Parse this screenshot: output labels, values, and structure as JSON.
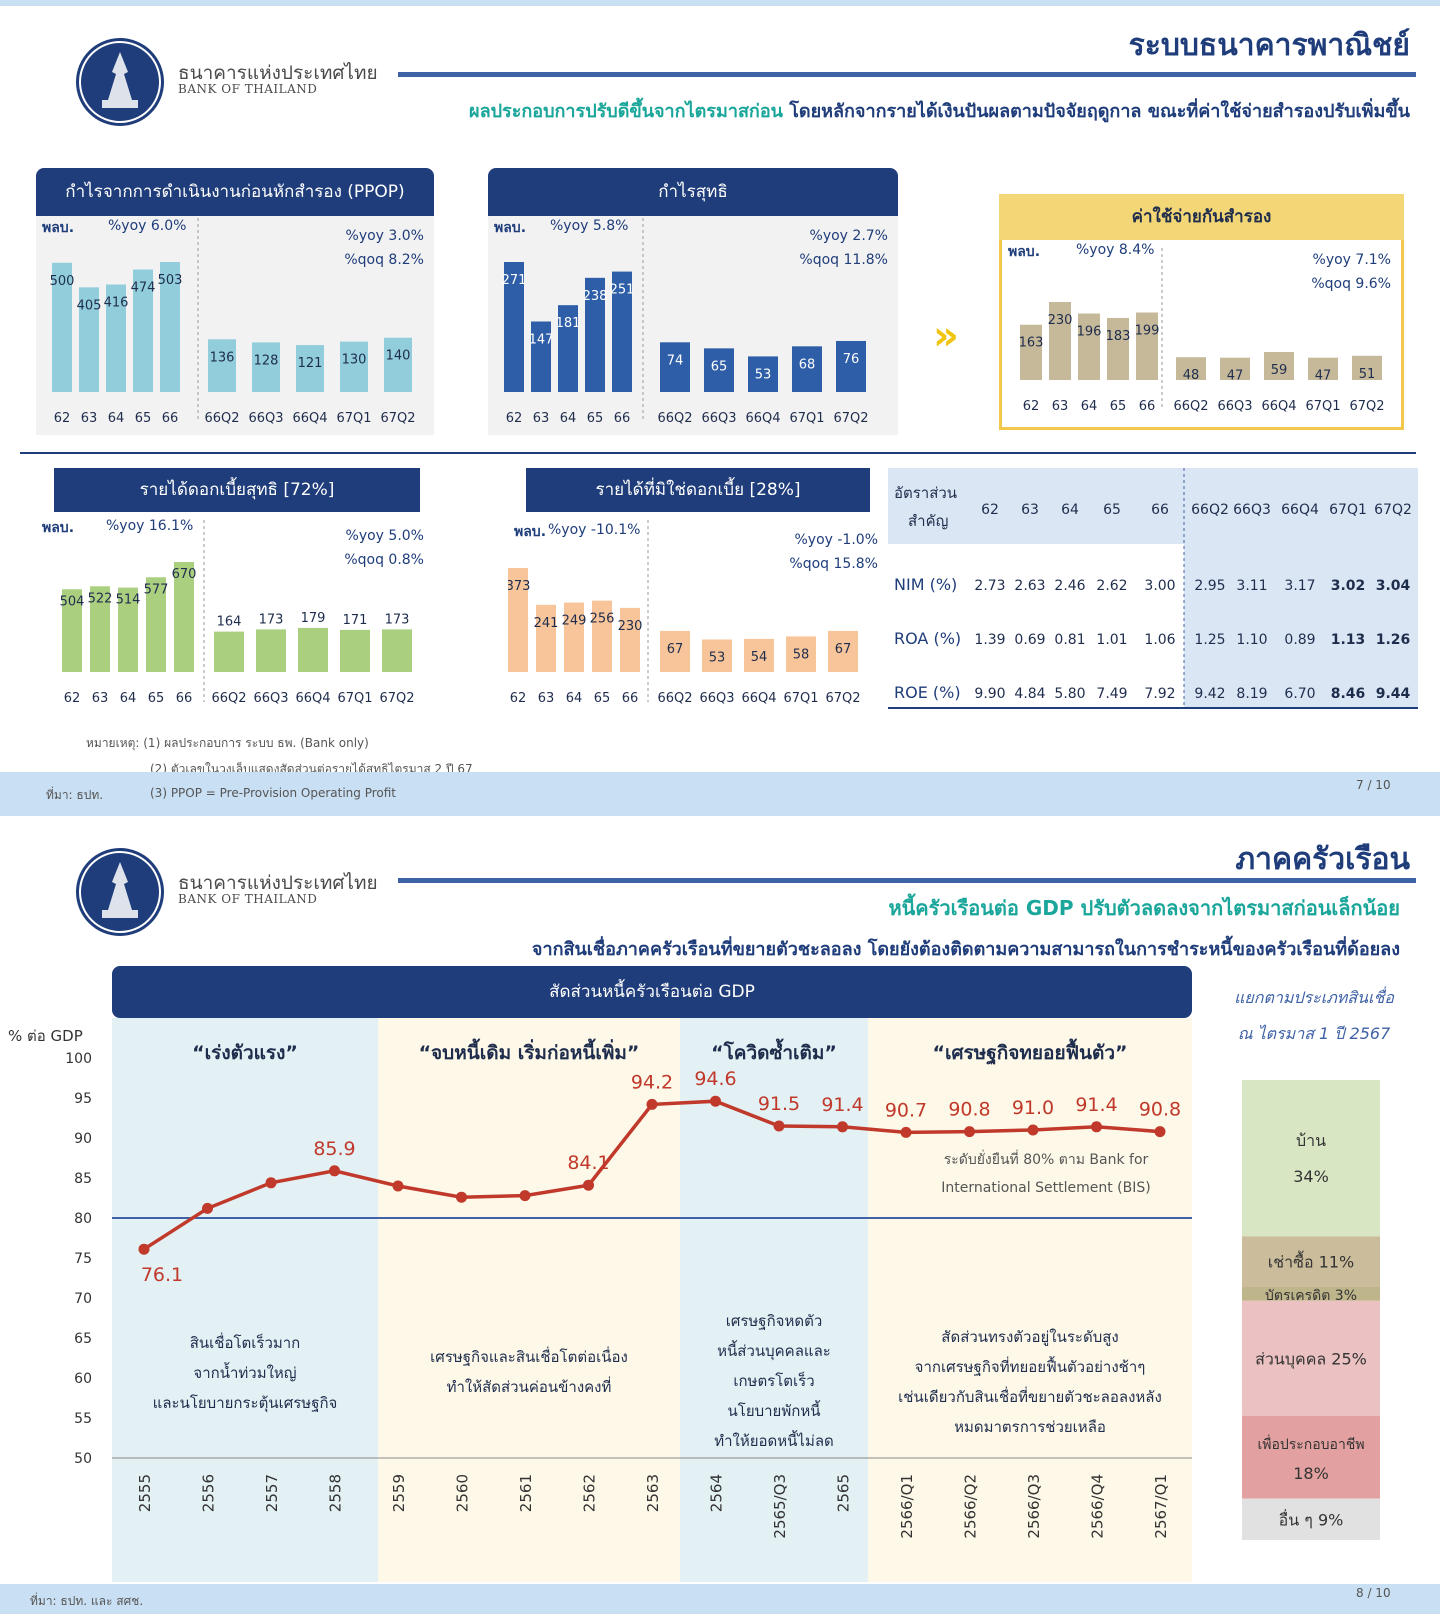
{
  "header": {
    "logo_th": "ธนาคารแห่งประเทศไทย",
    "logo_en": "BANK OF THAILAND"
  },
  "slide1": {
    "title": "ระบบธนาคารพาณิชย์",
    "subtitle_green": "ผลประกอบการปรับดีขึ้นจากไตรมาสก่อน",
    "subtitle_navy": "โดยหลักจากรายได้เงินปันผลตามปัจจัยฤดูกาล ขณะที่ค่าใช้จ่ายสำรองปรับเพิ่มขึ้น",
    "unit": "พลบ.",
    "notes": [
      "หมายเหตุ: (1) ผลประกอบการ ระบบ ธพ. (Bank only)",
      "(2) ตัวเลขในวงเล็บแสดงสัดส่วนต่อรายได้สุทธิไตรมาส 2 ปี 67",
      "(3) PPOP = Pre-Provision Operating Profit"
    ],
    "source": "ที่มา: ธปท.",
    "page": "7 / 10",
    "ratio_table": {
      "header_label_1": "อัตราส่วน",
      "header_label_2": "สำคัญ",
      "columns": [
        "62",
        "63",
        "64",
        "65",
        "66",
        "66Q2",
        "66Q3",
        "66Q4",
        "67Q1",
        "67Q2"
      ],
      "rows": [
        {
          "label": "NIM (%)",
          "values": [
            "2.73",
            "2.63",
            "2.46",
            "2.62",
            "3.00",
            "2.95",
            "3.11",
            "3.17",
            "3.02",
            "3.04"
          ]
        },
        {
          "label": "ROA (%)",
          "values": [
            "1.39",
            "0.69",
            "0.81",
            "1.01",
            "1.06",
            "1.25",
            "1.10",
            "0.89",
            "1.13",
            "1.26"
          ]
        },
        {
          "label": "ROE (%)",
          "values": [
            "9.90",
            "4.84",
            "5.80",
            "7.49",
            "7.92",
            "9.42",
            "8.19",
            "6.70",
            "8.46",
            "9.44"
          ]
        }
      ]
    }
  },
  "slide2": {
    "title": "ภาคครัวเรือน",
    "subtitle_green": "หนี้ครัวเรือนต่อ GDP ปรับตัวลดลงจากไตรมาสก่อนเล็กน้อย",
    "subtitle_navy": "จากสินเชื่อภาคครัวเรือนที่ขยายตัวชะลอลง โดยยังต้องติดตามความสามารถในการชำระหนี้ของครัวเรือนที่ด้อยลง",
    "source": "ที่มา: ธปท. และ สศช.",
    "page": "8 / 10",
    "eras": [
      "“เร่งตัวแรง”",
      "“จบหนี้เดิม เริ่มก่อหนี้เพิ่ม”",
      "“โควิดซ้ำเติม”",
      "“เศรษฐกิจทยอยฟื้นตัว”"
    ],
    "descs": [
      [
        "สินเชื่อโตเร็วมาก",
        "จากน้ำท่วมใหญ่",
        "และนโยบายกระตุ้นเศรษฐกิจ"
      ],
      [
        "เศรษฐกิจและสินเชื่อโตต่อเนื่อง",
        "ทำให้สัดส่วนค่อนข้างคงที่"
      ],
      [
        "เศรษฐกิจหดตัว",
        "หนี้ส่วนบุคคลและ",
        "เกษตรโตเร็ว",
        "นโยบายพักหนี้",
        "ทำให้ยอดหนี้ไม่ลด"
      ],
      [
        "สัดส่วนทรงตัวอยู่ในระดับสูง",
        "จากเศรษฐกิจที่ทยอยฟื้นตัวอย่างช้าๆ",
        "เช่นเดียวกับสินเชื่อที่ขยายตัวชะลอลงหลัง",
        "หมดมาตรการช่วยเหลือ"
      ]
    ],
    "bis_note": [
      "ระดับยั่งยืนที่ 80% ตาม Bank for",
      "International Settlement (BIS)"
    ],
    "stack_title": [
      "แยกตามประเภทสินเชื่อ",
      "ณ ไตรมาส 1 ปี 2567"
    ]
  },
  "chart_data": [
    {
      "type": "bar",
      "title": "กำไรจากการดำเนินงานก่อนหักสำรอง (PPOP)",
      "color": "#92cddc",
      "annual": {
        "categories": [
          "62",
          "63",
          "64",
          "65",
          "66"
        ],
        "values": [
          500,
          405,
          416,
          474,
          503
        ],
        "yoy": "%yoy 6.0%"
      },
      "quarterly": {
        "categories": [
          "66Q2",
          "66Q3",
          "66Q4",
          "67Q1",
          "67Q2"
        ],
        "values": [
          136,
          128,
          121,
          130,
          140
        ],
        "yoy": "%yoy 3.0%",
        "qoq": "%qoq 8.2%"
      }
    },
    {
      "type": "bar",
      "title": "กำไรสุทธิ",
      "color": "#2e5ea8",
      "annual": {
        "categories": [
          "62",
          "63",
          "64",
          "65",
          "66"
        ],
        "values": [
          271,
          147,
          181,
          238,
          251
        ],
        "yoy": "%yoy 5.8%"
      },
      "quarterly": {
        "categories": [
          "66Q2",
          "66Q3",
          "66Q4",
          "67Q1",
          "67Q2"
        ],
        "values": [
          74,
          65,
          53,
          68,
          76
        ],
        "yoy": "%yoy 2.7%",
        "qoq": "%qoq 11.8%"
      }
    },
    {
      "type": "bar",
      "title": "ค่าใช้จ่ายกันสำรอง",
      "color": "#c6b99a",
      "annual": {
        "categories": [
          "62",
          "63",
          "64",
          "65",
          "66"
        ],
        "values": [
          163,
          230,
          196,
          183,
          199
        ],
        "yoy": "%yoy 8.4%"
      },
      "quarterly": {
        "categories": [
          "66Q2",
          "66Q3",
          "66Q4",
          "67Q1",
          "67Q2"
        ],
        "values": [
          48,
          47,
          59,
          47,
          51
        ],
        "yoy": "%yoy 7.1%",
        "qoq": "%qoq 9.6%"
      }
    },
    {
      "type": "bar",
      "title": "รายได้ดอกเบี้ยสุทธิ [72%]",
      "color": "#a9cf7f",
      "annual": {
        "categories": [
          "62",
          "63",
          "64",
          "65",
          "66"
        ],
        "values": [
          504,
          522,
          514,
          577,
          670
        ],
        "yoy": "%yoy 16.1%"
      },
      "quarterly": {
        "categories": [
          "66Q2",
          "66Q3",
          "66Q4",
          "67Q1",
          "67Q2"
        ],
        "values": [
          164,
          173,
          179,
          171,
          173
        ],
        "yoy": "%yoy 5.0%",
        "qoq": "%qoq 0.8%"
      }
    },
    {
      "type": "bar",
      "title": "รายได้ที่มิใช่ดอกเบี้ย [28%]",
      "color": "#f8c59a",
      "annual": {
        "categories": [
          "62",
          "63",
          "64",
          "65",
          "66"
        ],
        "values": [
          373,
          241,
          249,
          256,
          230
        ],
        "yoy": "%yoy -10.1%"
      },
      "quarterly": {
        "categories": [
          "66Q2",
          "66Q3",
          "66Q4",
          "67Q1",
          "67Q2"
        ],
        "values": [
          67,
          53,
          54,
          58,
          67
        ],
        "yoy": "%yoy -1.0%",
        "qoq": "%qoq 15.8%"
      }
    },
    {
      "type": "line",
      "title": "สัดส่วนหนี้ครัวเรือนต่อ GDP",
      "ylabel": "% ต่อ GDP",
      "ylim": [
        50,
        100
      ],
      "yticks": [
        50,
        55,
        60,
        65,
        70,
        75,
        80,
        85,
        90,
        95,
        100
      ],
      "x": [
        "2555",
        "2556",
        "2557",
        "2558",
        "2559",
        "2560",
        "2561",
        "2562",
        "2563",
        "2564",
        "2565/Q3",
        "2565",
        "2566/Q1",
        "2566/Q2",
        "2566/Q3",
        "2566/Q4",
        "2567/Q1"
      ],
      "values": [
        76.1,
        81.2,
        84.4,
        85.9,
        84.0,
        82.6,
        82.8,
        84.1,
        94.2,
        94.6,
        91.5,
        91.4,
        90.7,
        90.8,
        91.0,
        91.4,
        90.8
      ],
      "labels": [
        "76.1",
        "",
        "",
        "85.9",
        "",
        "",
        "",
        "84.1",
        "94.2",
        "94.6",
        "91.5",
        "91.4",
        "90.7",
        "90.8",
        "91.0",
        "91.4",
        "90.8"
      ],
      "reference_line": 80,
      "line_color": "#c0392b"
    },
    {
      "type": "bar",
      "title": "แยกตามประเภทสินเชื่อ ณ ไตรมาส 1 ปี 2567",
      "segments": [
        {
          "name": "บ้าน",
          "value": 34,
          "label": "34%",
          "color": "#d9e6c4"
        },
        {
          "name": "เช่าซื้อ",
          "value": 11,
          "label": "เช่าซื้อ 11%",
          "color": "#cbbd9c"
        },
        {
          "name": "บัตรเครดิต",
          "value": 3,
          "label": "บัตรเครดิต 3%",
          "color": "#bfb58a"
        },
        {
          "name": "ส่วนบุคคล",
          "value": 25,
          "label": "ส่วนบุคคล 25%",
          "color": "#ebc1c1"
        },
        {
          "name": "เพื่อประกอบอาชีพ",
          "value": 18,
          "label": "18%",
          "color": "#e2a1a0"
        },
        {
          "name": "อื่น ๆ",
          "value": 9,
          "label": "อื่น ๆ 9%",
          "color": "#e1e1e1"
        }
      ]
    }
  ]
}
